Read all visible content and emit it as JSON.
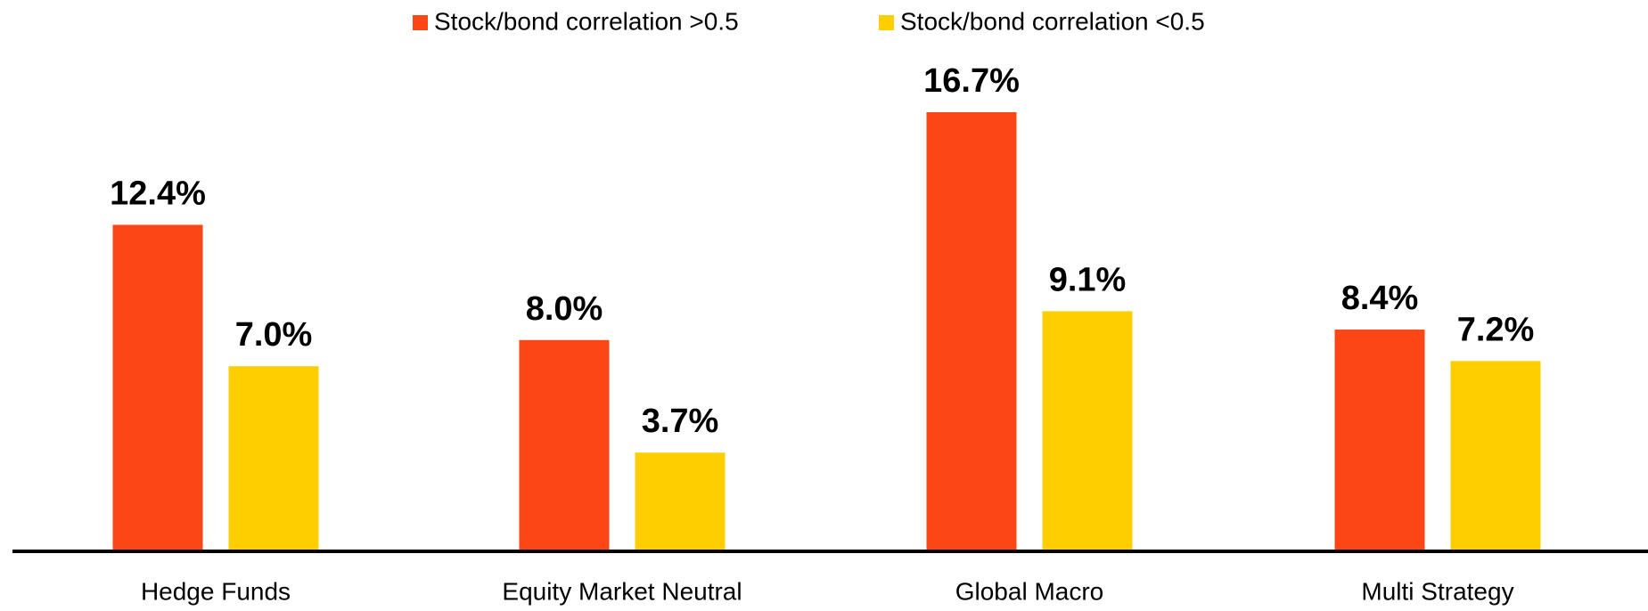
{
  "chart_data": {
    "type": "bar",
    "categories": [
      "Hedge Funds",
      "Equity Market Neutral",
      "Global Macro",
      "Multi Strategy"
    ],
    "series": [
      {
        "name": "Stock/bond correlation >0.5",
        "color": "#fc4616",
        "values": [
          12.4,
          8.0,
          16.7,
          8.4
        ],
        "value_labels": [
          "12.4%",
          "8.0%",
          "16.7%",
          "8.4%"
        ]
      },
      {
        "name": "Stock/bond correlation <0.5",
        "color": "#ffce00",
        "values": [
          7.0,
          3.7,
          9.1,
          7.2
        ],
        "value_labels": [
          "7.0%",
          "3.7%",
          "9.1%",
          "7.2%"
        ]
      }
    ],
    "legend": "top"
  }
}
